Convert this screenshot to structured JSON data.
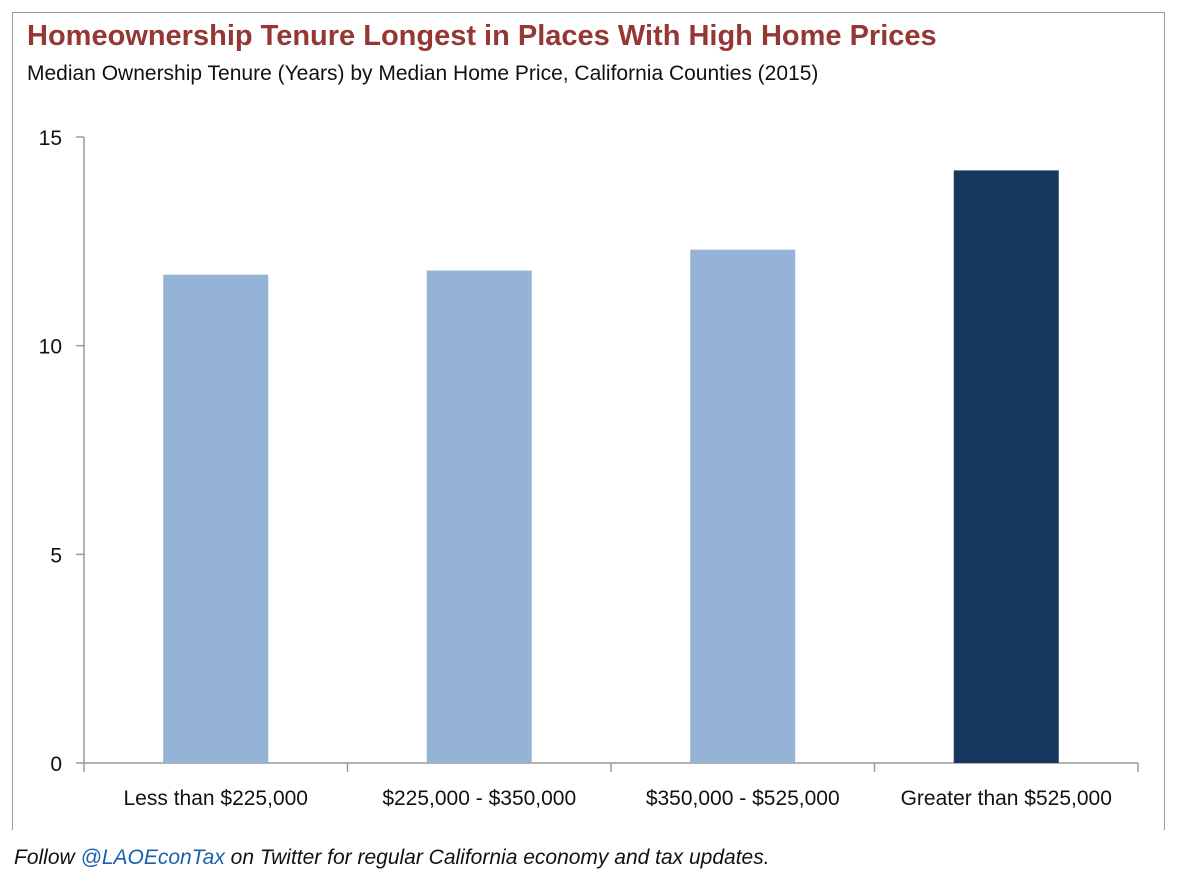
{
  "chart_data": {
    "type": "bar",
    "title": "Homeownership Tenure Longest in Places With High Home Prices",
    "subtitle": "Median Ownership Tenure (Years) by Median Home Price, California Counties (2015)",
    "categories": [
      "Less than $225,000",
      "$225,000 - $350,000",
      "$350,000 - $525,000",
      "Greater than $525,000"
    ],
    "values": [
      11.7,
      11.8,
      12.3,
      14.2
    ],
    "highlight_index": 3,
    "xlabel": "",
    "ylabel": "",
    "ylim": [
      0,
      15
    ],
    "yticks": [
      0,
      5,
      10,
      15
    ],
    "grid": false,
    "colors": {
      "bar": "#95b3d7",
      "highlight": "#17375e",
      "title": "#953735",
      "axis": "#9a9a9a"
    }
  },
  "footer": {
    "prefix": "Follow ",
    "handle": "@LAOEconTax",
    "suffix": " on Twitter for regular California economy and tax updates."
  }
}
